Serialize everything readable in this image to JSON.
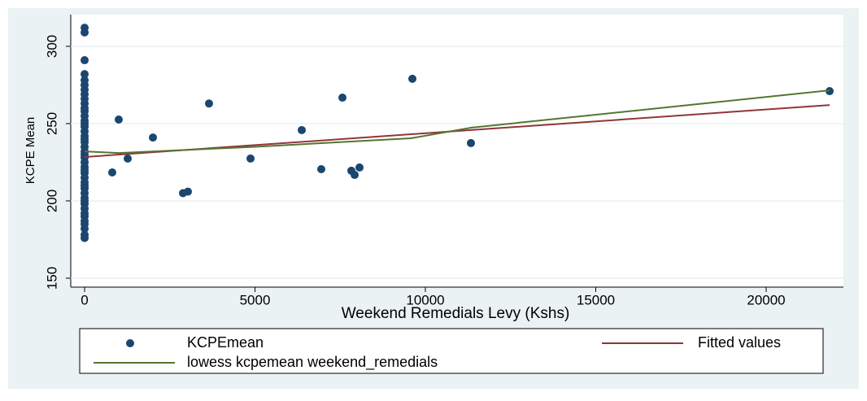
{
  "chart_data": {
    "type": "scatter",
    "x_label": "Weekend Remedials Levy (Kshs)",
    "y_label": "KCPE Mean",
    "xlim": [
      -406,
      22267
    ],
    "ylim": [
      144.2,
      320.5
    ],
    "xticks": [
      0,
      5000,
      10000,
      15000,
      20000
    ],
    "yticks": [
      150,
      200,
      250,
      300
    ],
    "grid": true,
    "series": [
      {
        "name": "KCPEmean",
        "mark": "points",
        "color": "#1a476f",
        "x": [
          0,
          0,
          0,
          0,
          0,
          0,
          0,
          0,
          0,
          0,
          0,
          0,
          0,
          0,
          0,
          0,
          0,
          0,
          0,
          0,
          0,
          0,
          0,
          0,
          0,
          0,
          0,
          0,
          0,
          0,
          0,
          0,
          0,
          0,
          0,
          0,
          0,
          0,
          0,
          0,
          0,
          0,
          0,
          0,
          811,
          1002,
          1265,
          2005,
          2888,
          3031,
          3651,
          4869,
          6372,
          6945,
          7566,
          7828,
          7924,
          8067,
          9618,
          11336,
          21862
        ],
        "values": [
          312,
          309,
          291,
          282,
          278,
          275,
          272,
          269,
          266,
          263,
          260,
          258,
          255,
          252,
          250,
          248,
          245,
          242,
          240,
          238,
          235,
          232,
          230,
          228,
          225,
          222,
          220,
          218,
          215,
          212,
          210,
          208,
          205,
          202,
          200,
          198,
          195,
          192,
          190,
          187,
          185,
          182,
          178,
          176,
          218.4,
          252.6,
          227.4,
          241,
          205,
          206,
          263,
          227.4,
          245.8,
          220.5,
          266.8,
          219.5,
          216.8,
          221.6,
          279,
          237.4,
          271
        ]
      },
      {
        "name": "Fitted values",
        "mark": "line",
        "color": "#90353b",
        "x": [
          0,
          21862
        ],
        "values": [
          228.4,
          262
        ]
      },
      {
        "name": "lowess kcpemean weekend_remedials",
        "mark": "line",
        "color": "#55752f",
        "x": [
          0,
          1000,
          5000,
          9570,
          11360,
          21862
        ],
        "values": [
          232,
          231,
          235,
          240.5,
          247.4,
          271.5
        ]
      }
    ]
  }
}
